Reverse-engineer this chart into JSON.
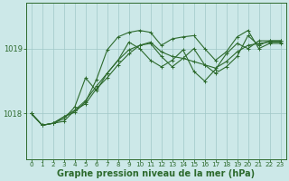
{
  "x": [
    0,
    1,
    2,
    3,
    4,
    5,
    6,
    7,
    8,
    9,
    10,
    11,
    12,
    13,
    14,
    15,
    16,
    17,
    18,
    19,
    20,
    21,
    22,
    23
  ],
  "series": [
    [
      1018.0,
      1017.82,
      1017.85,
      1017.88,
      1018.05,
      1018.15,
      1018.38,
      1018.55,
      1018.75,
      1018.92,
      1019.05,
      1019.08,
      1018.88,
      1018.72,
      1018.85,
      1019.0,
      1018.75,
      1018.62,
      1018.72,
      1018.88,
      1019.2,
      1019.05,
      1019.12,
      1019.12
    ],
    [
      1018.0,
      1017.82,
      1017.85,
      1017.92,
      1018.1,
      1018.55,
      1018.35,
      1018.62,
      1018.82,
      1019.1,
      1019.0,
      1018.82,
      1018.72,
      1018.82,
      1018.98,
      1018.65,
      1018.5,
      1018.68,
      1018.92,
      1019.08,
      1019.0,
      1019.12,
      1019.12,
      1019.12
    ],
    [
      1018.0,
      1017.82,
      1017.85,
      1017.95,
      1018.02,
      1018.18,
      1018.52,
      1018.98,
      1019.18,
      1019.25,
      1019.28,
      1019.25,
      1019.05,
      1019.15,
      1019.18,
      1019.2,
      1019.0,
      1018.82,
      1018.95,
      1019.18,
      1019.28,
      1019.0,
      1019.08,
      1019.08
    ],
    [
      1018.0,
      1017.82,
      1017.85,
      1017.95,
      1018.05,
      1018.2,
      1018.42,
      1018.62,
      1018.82,
      1018.98,
      1019.05,
      1019.1,
      1018.95,
      1018.88,
      1018.85,
      1018.8,
      1018.75,
      1018.7,
      1018.8,
      1018.95,
      1019.05,
      1019.08,
      1019.1,
      1019.1
    ]
  ],
  "line_color": "#2d6a2d",
  "marker": "+",
  "marker_size": 3.5,
  "linewidth": 0.8,
  "bg_color": "#cce8e8",
  "grid_color": "#a0c8c8",
  "axis_color": "#2d6a2d",
  "label_color": "#2d6a2d",
  "yticks": [
    1018,
    1019
  ],
  "ylim": [
    1017.3,
    1019.7
  ],
  "xlim": [
    -0.5,
    23.5
  ],
  "xticks": [
    0,
    1,
    2,
    3,
    4,
    5,
    6,
    7,
    8,
    9,
    10,
    11,
    12,
    13,
    14,
    15,
    16,
    17,
    18,
    19,
    20,
    21,
    22,
    23
  ],
  "xlabel": "Graphe pression niveau de la mer (hPa)",
  "xlabel_fontsize": 7.0,
  "tick_fontsize": 5.2,
  "ytick_fontsize": 6.0
}
